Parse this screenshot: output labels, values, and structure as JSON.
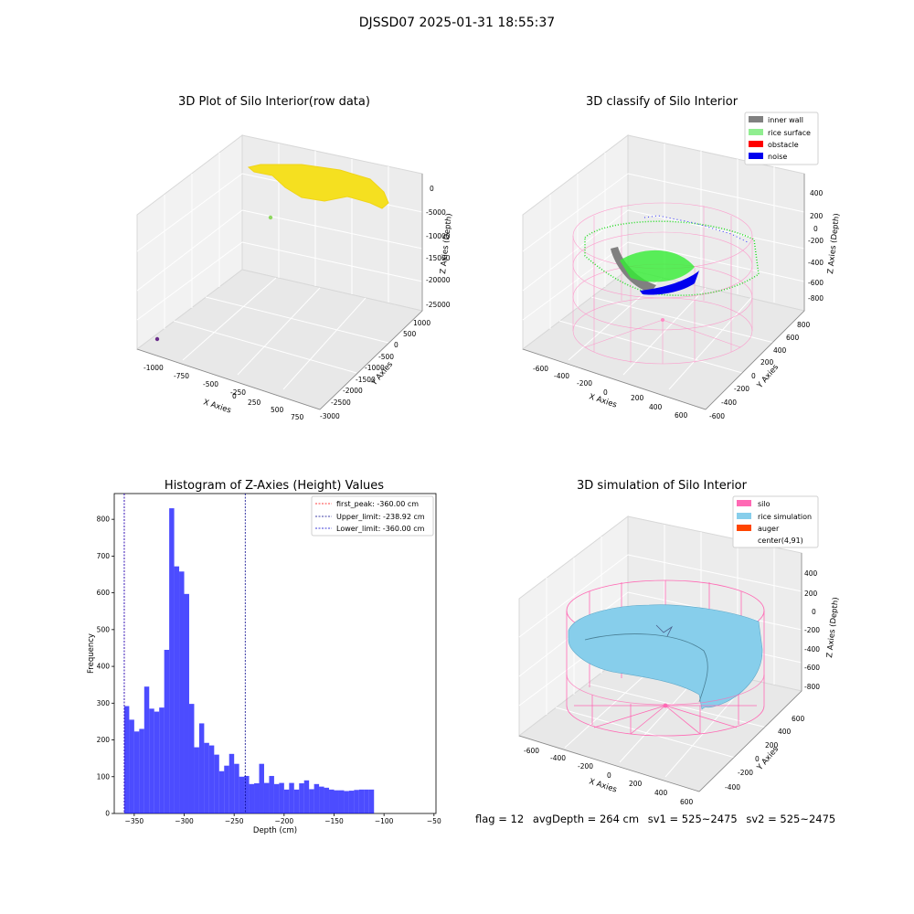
{
  "header": {
    "title": "DJSSD07 2025-01-31 18:55:37"
  },
  "panels": {
    "raw": {
      "title": "3D Plot of Silo Interior(row data)",
      "x_ticks": [
        "-1000",
        "-750",
        "-500",
        "-250",
        "0",
        "250",
        "500",
        "750"
      ],
      "y_ticks": [
        "1000",
        "500",
        "0",
        "-500",
        "-1000",
        "-1500",
        "-2000",
        "-2500",
        "-3000"
      ],
      "z_ticks": [
        "0",
        "-5000",
        "-10000",
        "-15000",
        "-20000",
        "-25000"
      ],
      "xlabel": "X Axies",
      "ylabel": "Y Axies",
      "zlabel": "Z Axies (Depth)",
      "colors": {
        "points": "#f5e020",
        "outlier_green": "#8fd860",
        "outlier_purple": "#6a2c8a"
      }
    },
    "classify": {
      "title": "3D classify of Silo Interior",
      "x_ticks": [
        "-600",
        "-400",
        "-200",
        "0",
        "200",
        "400",
        "600"
      ],
      "y_ticks": [
        "800",
        "600",
        "400",
        "200",
        "0",
        "-200",
        "-400",
        "-600"
      ],
      "z_ticks": [
        "400",
        "200",
        "0",
        "-200",
        "-400",
        "-600",
        "-800"
      ],
      "xlabel": "X Axies",
      "ylabel": "Y Axies",
      "zlabel": "Z Axies (Depth)",
      "legend": [
        {
          "label": "inner wall",
          "color": "#808080"
        },
        {
          "label": "rice surface",
          "color": "#90ee90"
        },
        {
          "label": "obstacle",
          "color": "#ff0000"
        },
        {
          "label": "noise",
          "color": "#0000ee"
        }
      ]
    },
    "simulation": {
      "title": "3D simulation of Silo Interior",
      "x_ticks": [
        "-600",
        "-400",
        "-200",
        "0",
        "200",
        "400",
        "600"
      ],
      "y_ticks": [
        "600",
        "400",
        "200",
        "0",
        "-200",
        "-400"
      ],
      "z_ticks": [
        "400",
        "200",
        "0",
        "-200",
        "-400",
        "-600",
        "-800"
      ],
      "xlabel": "X Axies",
      "ylabel": "Y Axies",
      "zlabel": "Z Axies (Depth)",
      "legend": [
        {
          "label": "silo",
          "color": "#ff69b4"
        },
        {
          "label": "rice simulation",
          "color": "#87ceeb"
        },
        {
          "label": "auger",
          "color": "#ff4500"
        },
        {
          "label": "center(4,91)",
          "color": "#ffffff"
        }
      ]
    }
  },
  "chart_data": {
    "type": "bar",
    "title": "Histogram of Z-Axies (Height) Values",
    "xlabel": "Depth (cm)",
    "ylabel": "Frequency",
    "xlim": [
      -370,
      -48
    ],
    "ylim": [
      0,
      870
    ],
    "x_ticks": [
      -350,
      -300,
      -250,
      -200,
      -150,
      -100,
      -50
    ],
    "y_ticks": [
      0,
      100,
      200,
      300,
      400,
      500,
      600,
      700,
      800
    ],
    "bar_color": "#0000ff",
    "bin_start": -360,
    "bin_width": 5,
    "values": [
      292,
      255,
      223,
      230,
      345,
      285,
      277,
      288,
      445,
      830,
      672,
      658,
      597,
      298,
      180,
      245,
      192,
      185,
      160,
      115,
      130,
      162,
      135,
      100,
      102,
      80,
      82,
      135,
      83,
      102,
      80,
      83,
      65,
      83,
      65,
      82,
      90,
      66,
      80,
      73,
      70,
      65,
      63,
      63,
      61,
      62,
      64,
      65,
      65,
      65
    ],
    "vlines": [
      {
        "label": "first_peak: -360.00 cm",
        "x": -360,
        "color": "#ff0000"
      },
      {
        "label": "Upper_limit: -238.92 cm",
        "x": -238.92,
        "color": "#00008b"
      },
      {
        "label": "Lower_limit: -360.00 cm",
        "x": -360,
        "color": "#0000cd"
      }
    ],
    "legend_position": "top-right"
  },
  "footer": {
    "flag": "flag = 12",
    "avg_depth": "avgDepth = 264 cm",
    "sv1": "sv1 = 525~2475",
    "sv2": "sv2 = 525~2475"
  }
}
